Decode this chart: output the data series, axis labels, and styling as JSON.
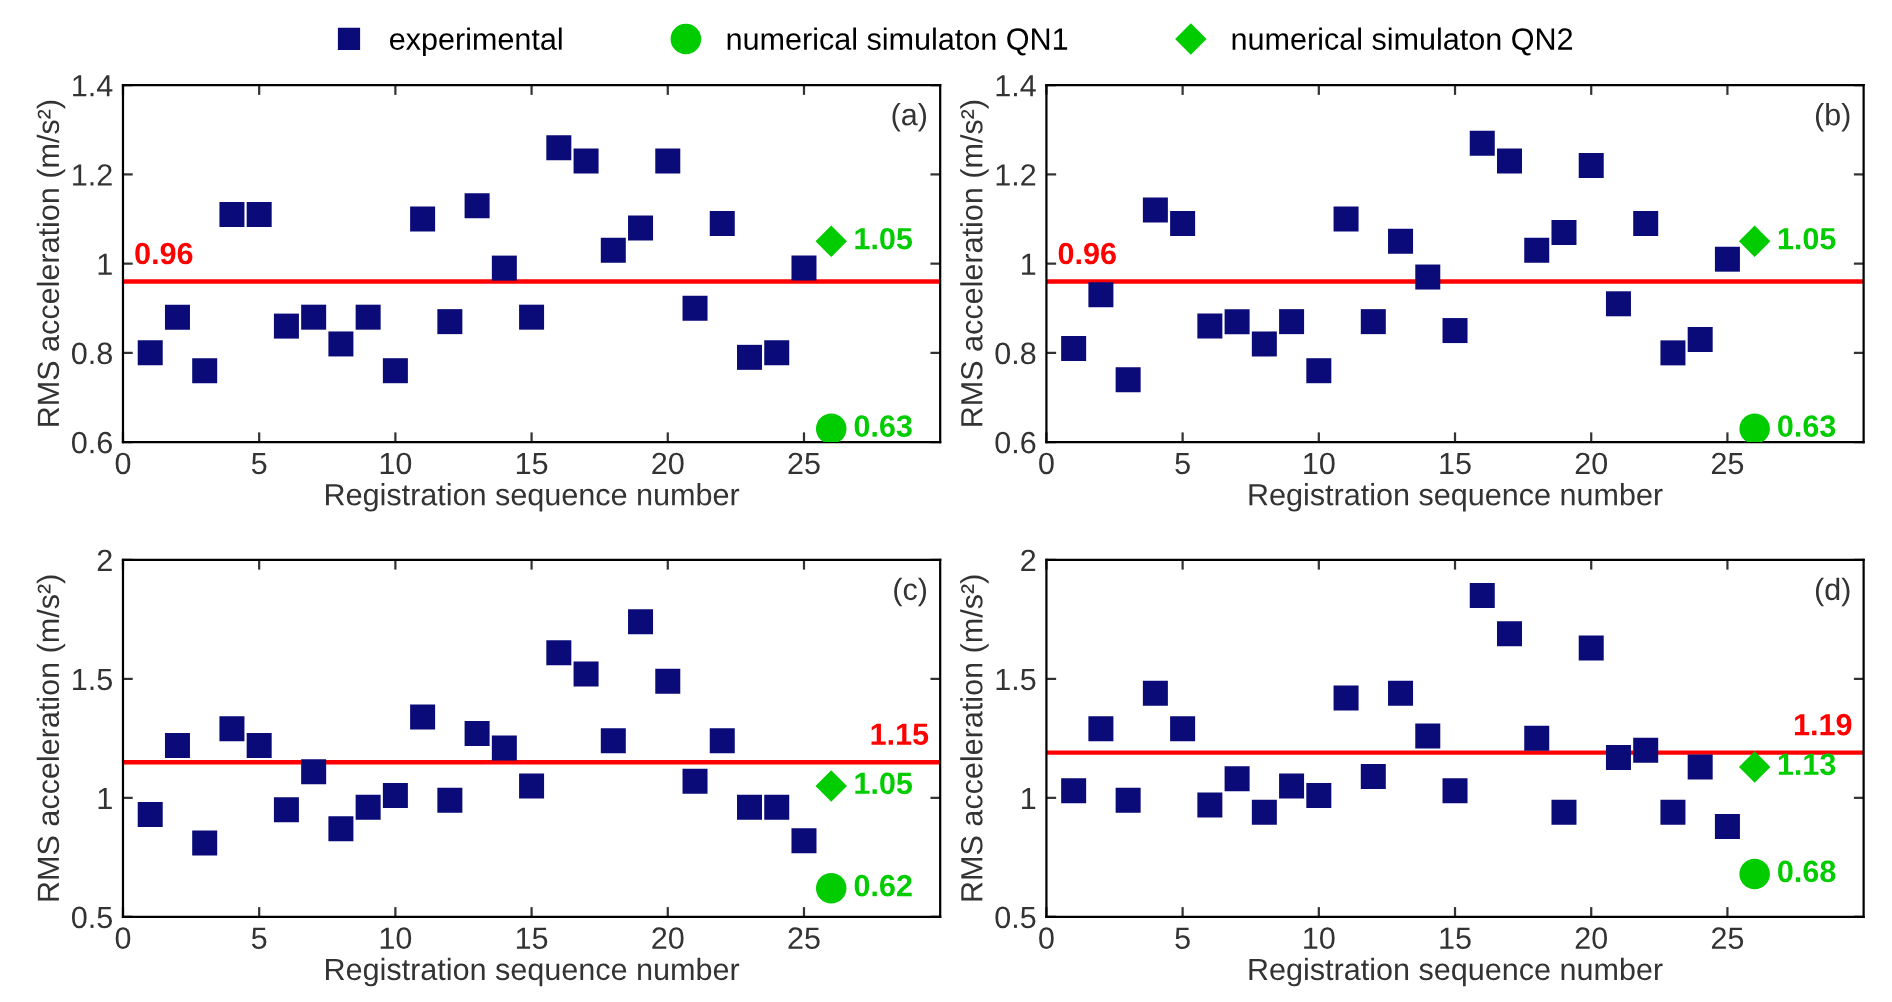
{
  "chart_data": [
    {
      "type": "scatter",
      "xlabel": "Registration sequence number",
      "ylabel": "RMS acceleration (m/s²)",
      "xlim": [
        0,
        30
      ],
      "xticks": [
        0,
        5,
        10,
        15,
        20,
        25
      ],
      "ylim": [
        0.6,
        1.4
      ],
      "yticks": [
        0.6,
        0.8,
        1,
        1.2,
        1.4
      ],
      "legend": "top",
      "annotations": [
        "(a)"
      ],
      "ref_lines": [
        {
          "axis": "y",
          "value": 0.96,
          "label": "0.96",
          "color": "#ff0000"
        }
      ],
      "series": [
        {
          "name": "experimental",
          "color": "#0a0a78",
          "marker": "square",
          "x": [
            1,
            2,
            3,
            4,
            5,
            6,
            7,
            8,
            9,
            10,
            11,
            12,
            13,
            14,
            15,
            16,
            17,
            18,
            19,
            20,
            21,
            22,
            23,
            24,
            25
          ],
          "values": [
            0.8,
            0.88,
            0.76,
            1.11,
            1.11,
            0.86,
            0.88,
            0.82,
            0.88,
            0.76,
            1.1,
            0.87,
            1.13,
            0.99,
            0.88,
            1.26,
            1.23,
            1.03,
            1.08,
            1.23,
            0.9,
            1.09,
            0.79,
            0.8,
            0.99
          ]
        },
        {
          "name": "numerical simulaton QN1",
          "color": "#00cc00",
          "marker": "circle",
          "x": [
            26
          ],
          "values": [
            0.63
          ],
          "value_labels": [
            "0.63"
          ]
        },
        {
          "name": "numerical simulaton QN2",
          "color": "#00cc00",
          "marker": "diamond",
          "x": [
            26
          ],
          "values": [
            1.05
          ],
          "value_labels": [
            "1.05"
          ]
        }
      ]
    },
    {
      "type": "scatter",
      "xlabel": "Registration sequence number",
      "ylabel": "RMS acceleration (m/s²)",
      "xlim": [
        0,
        30
      ],
      "xticks": [
        0,
        5,
        10,
        15,
        20,
        25
      ],
      "ylim": [
        0.6,
        1.4
      ],
      "yticks": [
        0.6,
        0.8,
        1,
        1.2,
        1.4
      ],
      "annotations": [
        "(b)"
      ],
      "ref_lines": [
        {
          "axis": "y",
          "value": 0.96,
          "label": "0.96",
          "color": "#ff0000"
        }
      ],
      "series": [
        {
          "color": "#0a0a78",
          "marker": "square",
          "x": [
            1,
            2,
            3,
            4,
            5,
            6,
            7,
            8,
            9,
            10,
            11,
            12,
            13,
            14,
            15,
            16,
            17,
            18,
            19,
            20,
            21,
            22,
            23,
            24,
            25
          ],
          "values": [
            0.81,
            0.93,
            0.74,
            1.12,
            1.09,
            0.86,
            0.87,
            0.82,
            0.87,
            0.76,
            1.1,
            0.87,
            1.05,
            0.97,
            0.85,
            1.27,
            1.23,
            1.03,
            1.07,
            1.22,
            0.91,
            1.09,
            0.8,
            0.83,
            1.01
          ]
        },
        {
          "color": "#00cc00",
          "marker": "circle",
          "x": [
            26
          ],
          "values": [
            0.63
          ],
          "value_labels": [
            "0.63"
          ]
        },
        {
          "color": "#00cc00",
          "marker": "diamond",
          "x": [
            26
          ],
          "values": [
            1.05
          ],
          "value_labels": [
            "1.05"
          ]
        }
      ]
    },
    {
      "type": "scatter",
      "xlabel": "Registration sequence number",
      "ylabel": "RMS acceleration (m/s²)",
      "xlim": [
        0,
        30
      ],
      "xticks": [
        0,
        5,
        10,
        15,
        20,
        25
      ],
      "ylim": [
        0.5,
        2
      ],
      "yticks": [
        0.5,
        1,
        1.5,
        2
      ],
      "annotations": [
        "(c)"
      ],
      "ref_lines": [
        {
          "axis": "y",
          "value": 1.15,
          "label": "1.15",
          "color": "#ff0000"
        }
      ],
      "series": [
        {
          "color": "#0a0a78",
          "marker": "square",
          "x": [
            1,
            2,
            3,
            4,
            5,
            6,
            7,
            8,
            9,
            10,
            11,
            12,
            13,
            14,
            15,
            16,
            17,
            18,
            19,
            20,
            21,
            22,
            23,
            24,
            25
          ],
          "values": [
            0.93,
            1.22,
            0.81,
            1.29,
            1.22,
            0.95,
            1.11,
            0.87,
            0.96,
            1.01,
            1.34,
            0.99,
            1.27,
            1.21,
            1.05,
            1.61,
            1.52,
            1.24,
            1.74,
            1.49,
            1.07,
            1.24,
            0.96,
            0.96,
            0.82
          ]
        },
        {
          "color": "#00cc00",
          "marker": "circle",
          "x": [
            26
          ],
          "values": [
            0.62
          ],
          "value_labels": [
            "0.62"
          ]
        },
        {
          "color": "#00cc00",
          "marker": "diamond",
          "x": [
            26
          ],
          "values": [
            1.05
          ],
          "value_labels": [
            "1.05"
          ]
        }
      ]
    },
    {
      "type": "scatter",
      "xlabel": "Registration sequence number",
      "ylabel": "RMS acceleration (m/s²)",
      "xlim": [
        0,
        30
      ],
      "xticks": [
        0,
        5,
        10,
        15,
        20,
        25
      ],
      "ylim": [
        0.5,
        2
      ],
      "yticks": [
        0.5,
        1,
        1.5,
        2
      ],
      "annotations": [
        "(d)"
      ],
      "ref_lines": [
        {
          "axis": "y",
          "value": 1.19,
          "label": "1.19",
          "color": "#ff0000"
        }
      ],
      "series": [
        {
          "color": "#0a0a78",
          "marker": "square",
          "x": [
            1,
            2,
            3,
            4,
            5,
            6,
            7,
            8,
            9,
            10,
            11,
            12,
            13,
            14,
            15,
            16,
            17,
            18,
            19,
            20,
            21,
            22,
            23,
            24,
            25
          ],
          "values": [
            1.03,
            1.29,
            0.99,
            1.44,
            1.29,
            0.97,
            1.08,
            0.94,
            1.05,
            1.01,
            1.42,
            1.09,
            1.44,
            1.26,
            1.03,
            1.85,
            1.69,
            1.25,
            0.94,
            1.63,
            1.17,
            1.2,
            0.94,
            1.13,
            0.88
          ]
        },
        {
          "color": "#00cc00",
          "marker": "circle",
          "x": [
            26
          ],
          "values": [
            0.68
          ],
          "value_labels": [
            "0.68"
          ]
        },
        {
          "color": "#00cc00",
          "marker": "diamond",
          "x": [
            26
          ],
          "values": [
            1.13
          ],
          "value_labels": [
            "1.13"
          ]
        }
      ]
    }
  ]
}
